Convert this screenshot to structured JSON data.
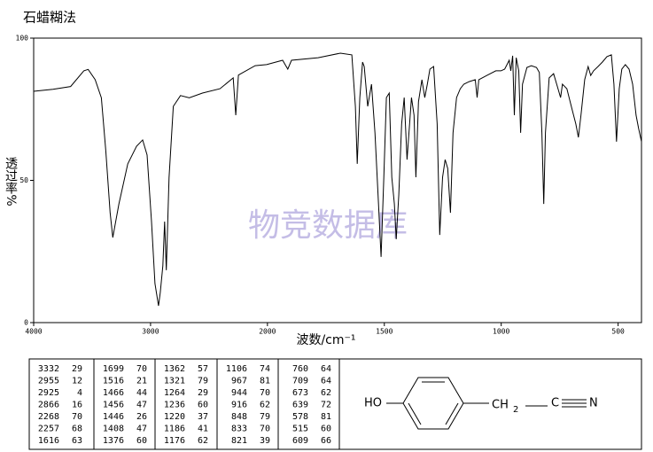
{
  "chart_data": {
    "type": "line",
    "title": "石蜡糊法",
    "xlabel": "波数/cm⁻¹",
    "ylabel": "透过率%",
    "watermark": "物竞数据库",
    "x": [
      4000,
      3835,
      3684,
      3571,
      3534,
      3474,
      3421,
      3383,
      3346,
      3323,
      3271,
      3195,
      3120,
      3068,
      3030,
      2992,
      2962,
      2932,
      2917,
      2895,
      2880,
      2865,
      2842,
      2805,
      2744,
      2669,
      2556,
      2406,
      2293,
      2271,
      2248,
      2105,
      2007,
      1935,
      1913,
      1897,
      1783,
      1688,
      1639,
      1624,
      1616,
      1605,
      1593,
      1586,
      1571,
      1555,
      1540,
      1525,
      1514,
      1502,
      1491,
      1479,
      1468,
      1457,
      1449,
      1438,
      1426,
      1415,
      1403,
      1396,
      1384,
      1373,
      1365,
      1354,
      1339,
      1327,
      1316,
      1305,
      1289,
      1274,
      1263,
      1251,
      1240,
      1229,
      1217,
      1206,
      1191,
      1175,
      1160,
      1137,
      1111,
      1103,
      1096,
      1061,
      1023,
      1001,
      985,
      966,
      959,
      951,
      944,
      936,
      925,
      917,
      909,
      890,
      871,
      849,
      837,
      826,
      818,
      811,
      795,
      776,
      757,
      746,
      738,
      719,
      700,
      681,
      670,
      659,
      643,
      628,
      617,
      605,
      586,
      567,
      548,
      529,
      518,
      507,
      495,
      484,
      469,
      453,
      438,
      423,
      412,
      400
    ],
    "values": [
      81.3,
      82,
      83,
      88.5,
      89,
      85.4,
      79,
      60.4,
      38.6,
      29.9,
      41.7,
      55.8,
      62,
      64.2,
      58.9,
      35.5,
      13.7,
      5.9,
      10.6,
      20,
      35.5,
      18.4,
      51,
      76,
      79.8,
      79,
      80.7,
      82.2,
      86,
      72.9,
      87,
      90.3,
      90.7,
      92.2,
      89.1,
      92.2,
      93.1,
      94.7,
      94.1,
      76.0,
      55.8,
      79.1,
      91.6,
      90.0,
      76.0,
      83.8,
      66.7,
      41.7,
      23.1,
      51.1,
      79.1,
      80.7,
      51.1,
      41.7,
      29.3,
      44.9,
      69.8,
      79.1,
      57.3,
      65.1,
      79.1,
      72.9,
      51.1,
      77.6,
      85.4,
      79.1,
      83.8,
      89.1,
      90.0,
      69.8,
      30.8,
      51.1,
      57.3,
      54.2,
      38.6,
      66.7,
      79.1,
      82.2,
      83.8,
      84.7,
      85.4,
      79.1,
      85.4,
      86.9,
      88.5,
      88.5,
      89.1,
      92.2,
      88.5,
      93.8,
      72.9,
      93.1,
      88.5,
      66.7,
      83.8,
      89.7,
      90.3,
      89.7,
      87.9,
      66.7,
      41.7,
      66.7,
      86.0,
      87.5,
      82.2,
      79.1,
      83.8,
      82.2,
      76.0,
      69.8,
      65.1,
      72.9,
      85.4,
      90.0,
      86.9,
      88.5,
      90.0,
      91.6,
      93.5,
      94.1,
      83.8,
      63.6,
      82.2,
      89.1,
      90.7,
      89.1,
      83.8,
      72.9,
      68.2,
      63.6
    ],
    "color": "#000000",
    "xlim": [
      4000,
      400
    ],
    "xticks": [
      4000,
      3000,
      2000,
      1500,
      1000,
      500
    ],
    "xscale": {
      "break": 2000,
      "factor": 2
    },
    "ylim": [
      0,
      100
    ],
    "yticks": [
      0,
      50,
      100
    ]
  },
  "peak_table": [
    [
      [
        3332,
        29
      ],
      [
        2955,
        12
      ],
      [
        2925,
        4
      ],
      [
        2866,
        16
      ],
      [
        2268,
        70
      ],
      [
        2257,
        68
      ],
      [
        1616,
        63
      ]
    ],
    [
      [
        1699,
        70
      ],
      [
        1516,
        21
      ],
      [
        1466,
        44
      ],
      [
        1456,
        47
      ],
      [
        1446,
        26
      ],
      [
        1408,
        47
      ],
      [
        1376,
        60
      ]
    ],
    [
      [
        1362,
        57
      ],
      [
        1321,
        79
      ],
      [
        1264,
        29
      ],
      [
        1236,
        60
      ],
      [
        1220,
        37
      ],
      [
        1186,
        41
      ],
      [
        1176,
        62
      ]
    ],
    [
      [
        1106,
        74
      ],
      [
        967,
        81
      ],
      [
        944,
        70
      ],
      [
        916,
        62
      ],
      [
        848,
        79
      ],
      [
        833,
        70
      ],
      [
        821,
        39
      ]
    ],
    [
      [
        760,
        64
      ],
      [
        709,
        64
      ],
      [
        673,
        62
      ],
      [
        639,
        72
      ],
      [
        578,
        81
      ],
      [
        515,
        60
      ],
      [
        609,
        66
      ]
    ]
  ],
  "structure": {
    "hydroxyl": "HO",
    "methylene": "CH",
    "subscript": "2",
    "carbon": "C",
    "nitrogen": "N"
  }
}
